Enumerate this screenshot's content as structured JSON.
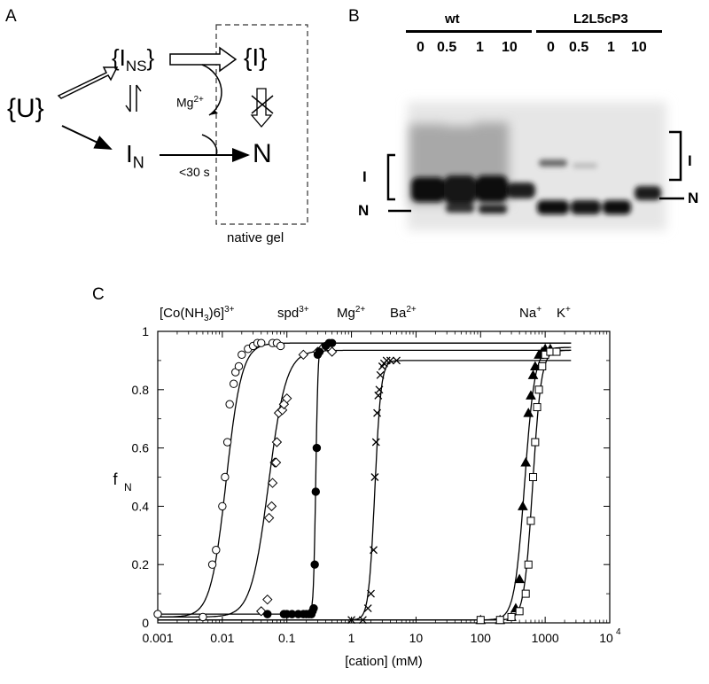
{
  "panels": {
    "a": "A",
    "b": "B",
    "c": "C"
  },
  "scheme": {
    "unfolded": "{U}",
    "ins_main": "{I",
    "ins_sub": "NS",
    "ins_close": "}",
    "intermediate": "{I}",
    "in_main": "I",
    "in_sub": "N",
    "native": "N",
    "mg_base": "Mg",
    "mg_sup": "2+",
    "time": "<30 s",
    "gel_label": "native gel"
  },
  "gel": {
    "groups": [
      "wt",
      "L2L5cP3"
    ],
    "lanes": [
      "0",
      "0.5",
      "1",
      "10",
      "0",
      "0.5",
      "1",
      "10"
    ],
    "left_I": "I",
    "left_N": "N",
    "right_I": "I",
    "right_N": "N"
  },
  "cation_labels": {
    "co_main": "[Co(NH",
    "co_sub": "3",
    "co_end": ")6]",
    "co_sup": "3+",
    "spd": "spd",
    "spd_sup": "3+",
    "mg": "Mg",
    "mg_sup": "2+",
    "ba": "Ba",
    "ba_sup": "2+",
    "na": "Na",
    "na_sup": "+",
    "k": "K",
    "k_sup": "+"
  },
  "chart_data": {
    "type": "scatter",
    "xlabel": "[cation] (mM)",
    "ylabel_main": "f",
    "ylabel_sub": "N",
    "xscale": "log",
    "xlim": [
      0.001,
      10000
    ],
    "ylim": [
      0,
      1
    ],
    "xticks": [
      "0.001",
      "0.01",
      "0.1",
      "1",
      "10",
      "100",
      "1000"
    ],
    "xtick_last_base": "10",
    "xtick_last_sup": "4",
    "yticks": [
      "0",
      "0.2",
      "0.4",
      "0.6",
      "0.8",
      "1"
    ],
    "series": [
      {
        "name": "[Co(NH3)6]3+",
        "marker": "open-circle",
        "x": [
          0.001,
          0.005,
          0.007,
          0.008,
          0.01,
          0.011,
          0.012,
          0.013,
          0.015,
          0.016,
          0.018,
          0.02,
          0.025,
          0.03,
          0.035,
          0.04,
          0.06,
          0.07,
          0.08
        ],
        "y": [
          0.03,
          0.02,
          0.2,
          0.25,
          0.4,
          0.5,
          0.62,
          0.75,
          0.82,
          0.86,
          0.88,
          0.92,
          0.94,
          0.95,
          0.96,
          0.96,
          0.96,
          0.96,
          0.95
        ],
        "fit": {
          "low": 0.02,
          "high": 0.96,
          "mid": 0.0115,
          "n": 3.6
        }
      },
      {
        "name": "spd3+",
        "marker": "open-diamond",
        "x": [
          0.04,
          0.05,
          0.053,
          0.058,
          0.06,
          0.065,
          0.068,
          0.07,
          0.075,
          0.085,
          0.09,
          0.1,
          0.18,
          0.3,
          0.35,
          0.5
        ],
        "y": [
          0.04,
          0.08,
          0.36,
          0.4,
          0.48,
          0.55,
          0.55,
          0.62,
          0.72,
          0.73,
          0.75,
          0.77,
          0.92,
          0.93,
          0.94,
          0.93
        ],
        "fit": {
          "low": 0.02,
          "high": 0.935,
          "mid": 0.052,
          "n": 3.2
        }
      },
      {
        "name": "Mg2+",
        "marker": "filled-circle",
        "x": [
          0.05,
          0.09,
          0.1,
          0.12,
          0.15,
          0.18,
          0.2,
          0.22,
          0.24,
          0.25,
          0.26,
          0.27,
          0.28,
          0.29,
          0.3,
          0.32,
          0.4,
          0.45,
          0.5
        ],
        "y": [
          0.03,
          0.03,
          0.03,
          0.03,
          0.03,
          0.03,
          0.03,
          0.03,
          0.03,
          0.04,
          0.05,
          0.2,
          0.45,
          0.6,
          0.92,
          0.93,
          0.95,
          0.96,
          0.96
        ],
        "fit": {
          "low": 0.03,
          "high": 0.96,
          "mid": 0.28,
          "n": 25
        }
      },
      {
        "name": "Ba2+",
        "marker": "cross",
        "x": [
          1.0,
          1.5,
          1.8,
          2.0,
          2.2,
          2.3,
          2.4,
          2.5,
          2.6,
          2.7,
          2.8,
          3.0,
          3.2,
          3.5,
          4.0,
          5.0
        ],
        "y": [
          0.01,
          0.01,
          0.05,
          0.1,
          0.25,
          0.5,
          0.62,
          0.72,
          0.78,
          0.8,
          0.85,
          0.88,
          0.89,
          0.9,
          0.9,
          0.9
        ],
        "fit": {
          "low": 0.01,
          "high": 0.9,
          "mid": 2.3,
          "n": 9
        }
      },
      {
        "name": "Na+",
        "marker": "filled-triangle",
        "x": [
          100,
          200,
          300,
          350,
          400,
          450,
          500,
          550,
          600,
          650,
          700,
          800,
          900,
          1000,
          1200
        ],
        "y": [
          0.01,
          0.01,
          0.02,
          0.05,
          0.15,
          0.4,
          0.55,
          0.72,
          0.78,
          0.85,
          0.88,
          0.92,
          0.93,
          0.94,
          0.94
        ],
        "fit": {
          "low": 0.01,
          "high": 0.945,
          "mid": 480,
          "n": 5.5
        }
      },
      {
        "name": "K+",
        "marker": "open-square",
        "x": [
          100,
          200,
          300,
          400,
          500,
          550,
          600,
          650,
          700,
          750,
          800,
          900,
          1000,
          1200,
          1500
        ],
        "y": [
          0.01,
          0.01,
          0.02,
          0.04,
          0.1,
          0.2,
          0.35,
          0.5,
          0.62,
          0.74,
          0.8,
          0.88,
          0.92,
          0.93,
          0.93
        ],
        "fit": {
          "low": 0.01,
          "high": 0.935,
          "mid": 640,
          "n": 6.5
        }
      }
    ]
  }
}
